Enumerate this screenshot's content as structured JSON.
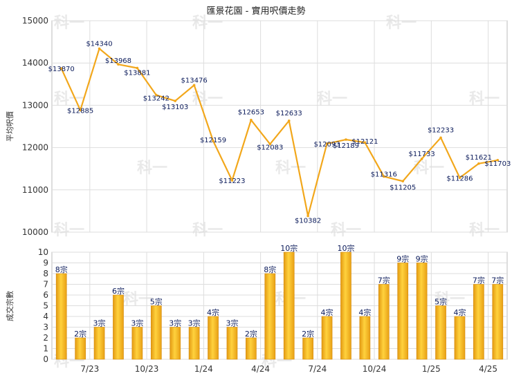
{
  "chart_data": [
    {
      "type": "line",
      "title": "匯景花園 - 實用呎價走勢",
      "ylabel": "平均呎價",
      "ylim": [
        10000,
        15000
      ],
      "yticks": [
        "10000",
        "11000",
        "12000",
        "13000",
        "14000",
        "15000"
      ],
      "grid": true,
      "color": "#f2a71b",
      "series": [
        {
          "values": [
            13870,
            12885,
            14340,
            13968,
            13881,
            13242,
            13103,
            13476,
            12159,
            11223,
            12653,
            12083,
            12633,
            10382,
            12093,
            12189,
            12121,
            11316,
            11205,
            11733,
            12233,
            11286,
            11621,
            11703
          ],
          "labels": [
            "$13870",
            "$12885",
            "$14340",
            "$13968",
            "$13881",
            "$13242",
            "$13103",
            "$13476",
            "$12159",
            "$11223",
            "$12653",
            "$12083",
            "$12633",
            "$10382",
            "$12093",
            "$12189",
            "$12121",
            "$11316",
            "$11205",
            "$11733",
            "$12233",
            "$11286",
            "$11621",
            "$11703"
          ]
        }
      ]
    },
    {
      "type": "bar",
      "ylabel": "成交宗數",
      "ylim": [
        0,
        10
      ],
      "yticks": [
        "0",
        "1",
        "2",
        "3",
        "4",
        "5",
        "6",
        "7",
        "8",
        "9",
        "10"
      ],
      "grid": true,
      "color": "#f2a71b",
      "categories": [
        "7/23",
        "10/23",
        "1/24",
        "4/24",
        "7/24",
        "10/24",
        "1/25",
        "4/25"
      ],
      "values": [
        8,
        2,
        3,
        6,
        3,
        5,
        3,
        3,
        4,
        3,
        2,
        8,
        10,
        2,
        4,
        10,
        4,
        7,
        9,
        9,
        5,
        4,
        7,
        7
      ],
      "labels": [
        "8宗",
        "2宗",
        "3宗",
        "6宗",
        "3宗",
        "5宗",
        "3宗",
        "3宗",
        "4宗",
        "3宗",
        "2宗",
        "8宗",
        "10宗",
        "2宗",
        "4宗",
        "10宗",
        "4宗",
        "7宗",
        "9宗",
        "9宗",
        "5宗",
        "4宗",
        "7宗",
        "7宗"
      ]
    }
  ],
  "watermark": "科一"
}
